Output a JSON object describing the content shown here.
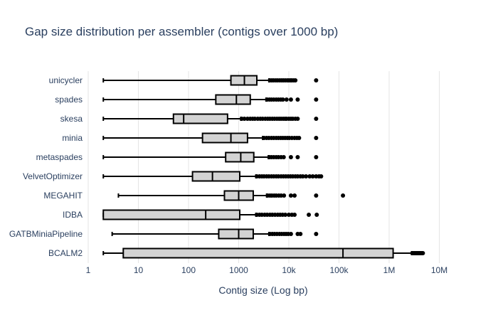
{
  "chart_data": {
    "type": "box",
    "title": "Gap size distribution per assembler (contigs over 1000 bp)",
    "xlabel": "Contig size (Log bp)",
    "ylabel": "",
    "x_scale": "log",
    "xlim": [
      1,
      20000000
    ],
    "x_ticks": [
      {
        "value": 1,
        "label": "1"
      },
      {
        "value": 10,
        "label": "10"
      },
      {
        "value": 100,
        "label": "100"
      },
      {
        "value": 1000,
        "label": "1000"
      },
      {
        "value": 10000,
        "label": "10k"
      },
      {
        "value": 100000,
        "label": "100k"
      },
      {
        "value": 1000000,
        "label": "1M"
      },
      {
        "value": 10000000,
        "label": "10M"
      }
    ],
    "grid": true,
    "box_fill": "#d3d3d3",
    "line_color": "#000000",
    "series": [
      {
        "category": "unicycler",
        "whisker_low": 2,
        "q1": 700,
        "median": 1300,
        "q3": 2300,
        "whisker_high": 4000,
        "outliers": [
          4200,
          4600,
          5000,
          5500,
          6000,
          6600,
          7200,
          7800,
          8500,
          9300,
          10000,
          10800,
          11500,
          12500,
          13500,
          35000
        ]
      },
      {
        "category": "spades",
        "whisker_low": 2,
        "q1": 350,
        "median": 900,
        "q3": 1700,
        "whisker_high": 3500,
        "outliers": [
          3700,
          4100,
          4500,
          5000,
          5600,
          6200,
          6900,
          7600,
          9000,
          11000,
          15000,
          35000
        ]
      },
      {
        "category": "skesa",
        "whisker_low": 2,
        "q1": 50,
        "median": 80,
        "q3": 600,
        "whisker_high": 1100,
        "outliers": [
          1150,
          1300,
          1500,
          1700,
          1900,
          2100,
          2400,
          2700,
          3000,
          3400,
          3800,
          4200,
          4700,
          5200,
          5800,
          6400,
          7000,
          7700,
          8400,
          9000,
          10000,
          11000,
          12000,
          13500,
          15000,
          35000
        ]
      },
      {
        "category": "minia",
        "whisker_low": 2,
        "q1": 190,
        "median": 700,
        "q3": 1500,
        "whisker_high": 3000,
        "outliers": [
          3200,
          3600,
          4000,
          4500,
          5000,
          5600,
          6200,
          6900,
          7600,
          8400,
          9300,
          10200,
          11500,
          13000,
          14500,
          16000,
          35000
        ]
      },
      {
        "category": "metaspades",
        "whisker_low": 2,
        "q1": 550,
        "median": 1100,
        "q3": 2000,
        "whisker_high": 3900,
        "outliers": [
          4100,
          4500,
          5000,
          5600,
          6200,
          7000,
          7900,
          11000,
          15000,
          35000
        ]
      },
      {
        "category": "VelvetOptimizer",
        "whisker_low": 2,
        "q1": 120,
        "median": 300,
        "q3": 1050,
        "whisker_high": 2200,
        "outliers": [
          2300,
          2600,
          2900,
          3200,
          3600,
          4000,
          4500,
          5000,
          5600,
          6200,
          7000,
          7800,
          8700,
          9700,
          10800,
          12000,
          13500,
          15000,
          17000,
          19000,
          22000,
          26000,
          30000,
          35000,
          40000,
          44000
        ]
      },
      {
        "category": "MEGAHIT",
        "whisker_low": 4,
        "q1": 520,
        "median": 1000,
        "q3": 1950,
        "whisker_high": 3600,
        "outliers": [
          3800,
          4200,
          4600,
          5100,
          5600,
          6300,
          7000,
          8000,
          11000,
          13000,
          35000,
          120000
        ]
      },
      {
        "category": "IDBA",
        "whisker_low": 2,
        "q1": 2,
        "median": 220,
        "q3": 1050,
        "whisker_high": 2200,
        "outliers": [
          2300,
          2600,
          2900,
          3300,
          3700,
          4200,
          4700,
          5300,
          6000,
          6700,
          7500,
          8500,
          10000,
          11500,
          13000,
          25000,
          36000
        ]
      },
      {
        "category": "GATBMiniaPipeline",
        "whisker_low": 3,
        "q1": 400,
        "median": 1000,
        "q3": 1950,
        "whisker_high": 4000,
        "outliers": [
          4200,
          4700,
          5200,
          5800,
          6500,
          7200,
          8000,
          8800,
          9700,
          11000,
          15000,
          17000,
          35000
        ]
      },
      {
        "category": "BCALM2",
        "whisker_low": 2,
        "q1": 5,
        "median": 120000,
        "q3": 1200000,
        "whisker_high": 2800000,
        "outliers": [
          2900000,
          3050000,
          3200000,
          3350000,
          3500000,
          3650000,
          3800000,
          3950000,
          4100000,
          4300000,
          4500000,
          4700000
        ]
      }
    ]
  }
}
